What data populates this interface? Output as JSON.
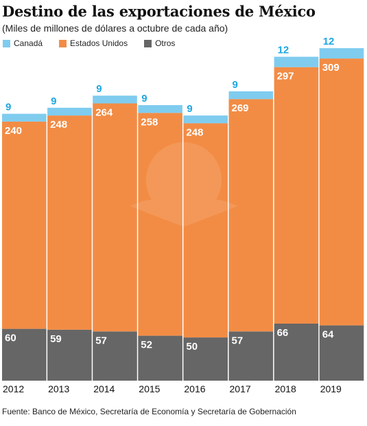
{
  "title": "Destino de las exportaciones de México",
  "subtitle": "(Miles de millones de dólares a octubre de cada año)",
  "source": "Fuente: Banco de México, Secretaría de Economía y Secretaría de Gobernación",
  "chart_data": {
    "type": "bar",
    "stacked": true,
    "categories": [
      "2012",
      "2013",
      "2014",
      "2015",
      "2016",
      "2017",
      "2018",
      "2019"
    ],
    "series": [
      {
        "name": "Otros",
        "color": "#666666",
        "values": [
          60,
          59,
          57,
          52,
          50,
          57,
          66,
          64
        ]
      },
      {
        "name": "Estados Unidos",
        "color": "#F28C45",
        "values": [
          240,
          248,
          264,
          258,
          248,
          269,
          297,
          309
        ]
      },
      {
        "name": "Canadá",
        "color": "#7FCCEF",
        "values": [
          9,
          9,
          9,
          9,
          9,
          9,
          12,
          12
        ]
      }
    ],
    "legend_order": [
      "Canadá",
      "Estados Unidos",
      "Otros"
    ],
    "legend_position": "top-left",
    "label_colors": {
      "Canadá": "#1EA7E0",
      "Estados Unidos": "#ffffff",
      "Otros": "#ffffff"
    },
    "ylim": [
      0,
      400
    ],
    "grid": false,
    "xlabel": "",
    "ylabel": ""
  }
}
